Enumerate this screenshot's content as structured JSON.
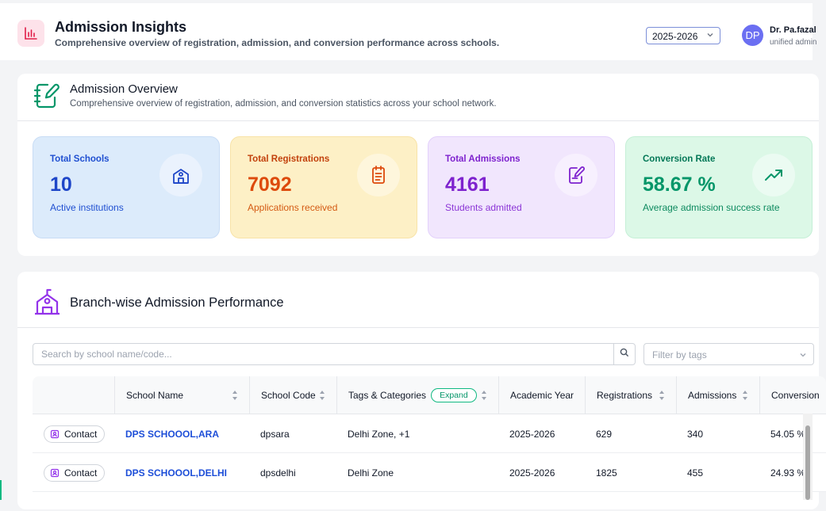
{
  "header": {
    "title": "Admission Insights",
    "subtitle": "Comprehensive overview of registration, admission, and conversion performance across schools.",
    "icon": "bar-chart-icon",
    "year_selected": "2025-2026",
    "user": {
      "initials": "DP",
      "name": "Dr. Pa.fazal",
      "role": "unified admin"
    }
  },
  "overview": {
    "title": "Admission Overview",
    "subtitle": "Comprehensive overview of registration, admission, and conversion statistics across your school network.",
    "icon": "notebook-pen-icon",
    "stats": [
      {
        "label": "Total Schools",
        "value": "10",
        "description": "Active institutions",
        "icon": "school-icon",
        "color": "#1e46c8"
      },
      {
        "label": "Total Registrations",
        "value": "7092",
        "description": "Applications received",
        "icon": "clipboard-list-icon",
        "color": "#dd4a0c"
      },
      {
        "label": "Total Admissions",
        "value": "4161",
        "description": "Students admitted",
        "icon": "edit-note-icon",
        "color": "#7e22ce"
      },
      {
        "label": "Conversion Rate",
        "value": "58.67 %",
        "description": "Average admission success rate",
        "icon": "trending-up-icon",
        "color": "#059669"
      }
    ]
  },
  "branch": {
    "title": "Branch-wise Admission Performance",
    "icon": "school-building-icon",
    "search_placeholder": "Search by school name/code...",
    "tag_filter_placeholder": "Filter by tags",
    "expand_label": "Expand",
    "columns": {
      "school_name": "School Name",
      "school_code": "School Code",
      "tags": "Tags & Categories",
      "academic_year": "Academic Year",
      "registrations": "Registrations",
      "admissions": "Admissions",
      "conversion": "Conversion"
    },
    "rows": [
      {
        "contact": "Contact",
        "school_name": "DPS SCHOOOL,ARA",
        "school_code": "dpsara",
        "tags": "Delhi Zone, +1",
        "academic_year": "2025-2026",
        "registrations": "629",
        "admissions": "340",
        "conversion": "54.05 %"
      },
      {
        "contact": "Contact",
        "school_name": "DPS SCHOOOL,DELHI",
        "school_code": "dpsdelhi",
        "tags": "Delhi Zone",
        "academic_year": "2025-2026",
        "registrations": "1825",
        "admissions": "455",
        "conversion": "24.93 %"
      }
    ]
  }
}
